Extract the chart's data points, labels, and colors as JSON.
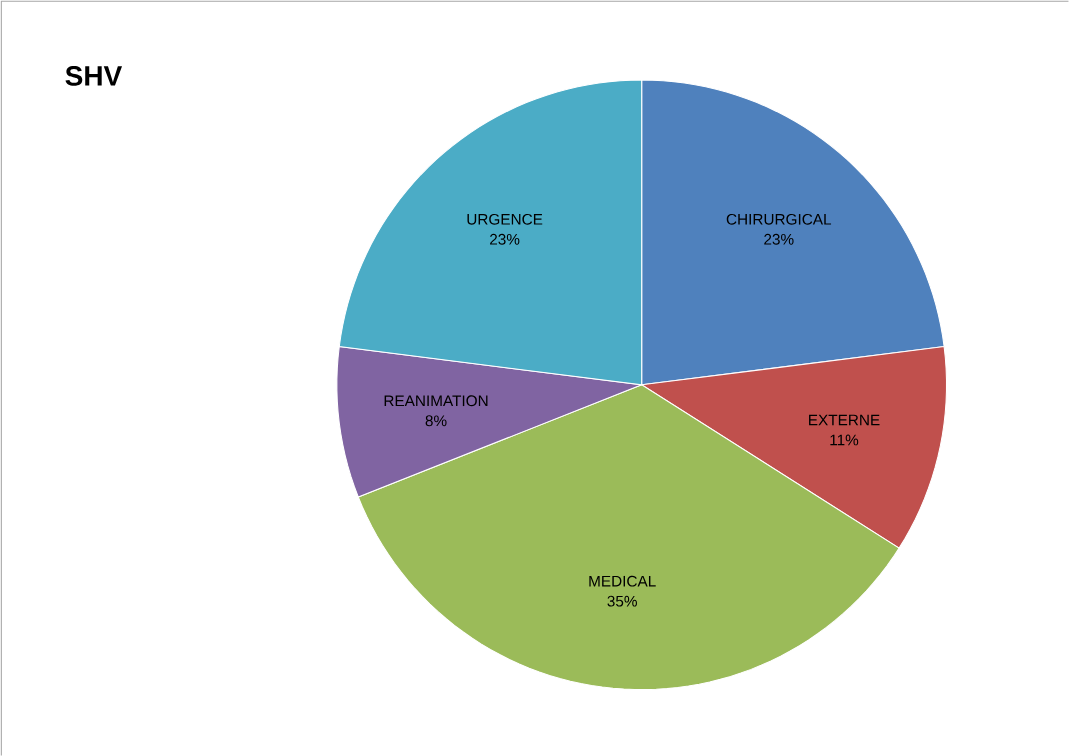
{
  "chart_data": {
    "type": "pie",
    "title": "SHV",
    "categories": [
      "CHIRURGICAL",
      "EXTERNE",
      "MEDICAL",
      "REANIMATION",
      "URGENCE"
    ],
    "values": [
      23,
      11,
      35,
      8,
      23
    ],
    "value_labels": [
      "23%",
      "11%",
      "35%",
      "8%",
      "23%"
    ],
    "colors": [
      "#4f81bd",
      "#c0504d",
      "#9bbb59",
      "#8064a2",
      "#4bacc6"
    ]
  }
}
